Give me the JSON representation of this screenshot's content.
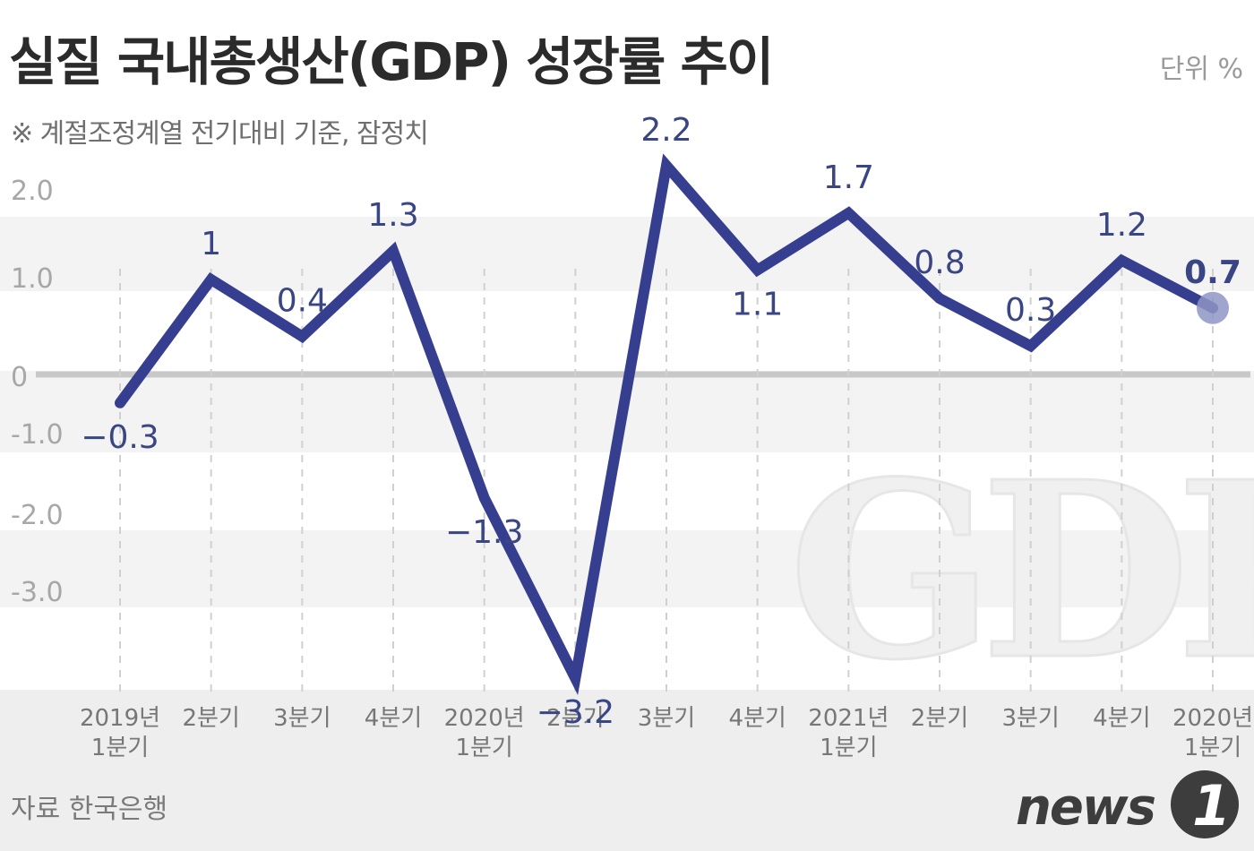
{
  "header": {
    "title": "실질 국내총생산(GDP) 성장률 추이",
    "unit": "단위 %",
    "subtitle": "※ 계절조정계열 전기대비 기준, 잠정치"
  },
  "footer": {
    "source": "자료 한국은행",
    "logo_text": "news1"
  },
  "watermark": "GDP",
  "colors": {
    "line": "#363f8f",
    "band": "#f3f3f3",
    "zero_line": "#c8c8c8",
    "label": "#3a4584",
    "last_point": "#8f95c4"
  },
  "chart_data": {
    "type": "line",
    "yticks": [
      {
        "value": 2.0,
        "label": "2.0"
      },
      {
        "value": 1.0,
        "label": "1.0"
      },
      {
        "value": 0,
        "label": "0"
      },
      {
        "value": -1.0,
        "label": "-1.0"
      },
      {
        "value": -2.0,
        "label": "-2.0"
      },
      {
        "value": -3.0,
        "label": "-3.0"
      }
    ],
    "ylim": [
      -3.8,
      2.2
    ],
    "categories": [
      [
        "2019년",
        "1분기"
      ],
      [
        "2분기"
      ],
      [
        "3분기"
      ],
      [
        "4분기"
      ],
      [
        "2020년",
        "1분기"
      ],
      [
        "2분기"
      ],
      [
        "3분기"
      ],
      [
        "4분기"
      ],
      [
        "2021년",
        "1분기"
      ],
      [
        "2분기"
      ],
      [
        "3분기"
      ],
      [
        "4분기"
      ],
      [
        "2020년",
        "1분기"
      ]
    ],
    "series": [
      {
        "values": [
          -0.3,
          1,
          0.4,
          1.3,
          -1.3,
          -3.2,
          2.2,
          1.1,
          1.7,
          0.8,
          0.3,
          1.2,
          0.7
        ],
        "labels": [
          "−0.3",
          "1",
          "0.4",
          "1.3",
          "−1.3",
          "−3.2",
          "2.2",
          "1.1",
          "1.7",
          "0.8",
          "0.3",
          "1.2",
          "0.7"
        ]
      }
    ],
    "grid": true
  }
}
